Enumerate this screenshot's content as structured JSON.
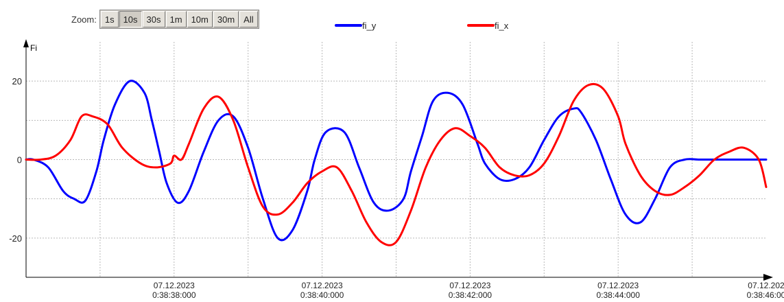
{
  "toolbar": {
    "zoom_label": "Zoom:",
    "buttons": [
      "1s",
      "10s",
      "30s",
      "1m",
      "10m",
      "30m",
      "All"
    ],
    "active": "10s"
  },
  "chart_data": {
    "type": "line",
    "ylabel": "Fi",
    "xlabel": "",
    "ylim": [
      -30,
      30
    ],
    "yticks": [
      -20,
      0,
      20
    ],
    "xlim": [
      "07.12.2023 0:38:36.00",
      "07.12.2023 0:38:46.00"
    ],
    "xticks": [
      {
        "date": "07.12.2023",
        "time": "0:38:38:000"
      },
      {
        "date": "07.12.2023",
        "time": "0:38:40:000"
      },
      {
        "date": "07.12.2023",
        "time": "0:38:42:000"
      },
      {
        "date": "07.12.2023",
        "time": "0:38:44:000"
      },
      {
        "date": "07.12.202",
        "time": "0:38:46:00"
      }
    ],
    "grid": true,
    "legend_position": "top-center",
    "series": [
      {
        "name": "fi_y",
        "color": "#0000ff",
        "x": [
          "0:38:36.00",
          "0:38:36.10",
          "0:38:36.30",
          "0:38:36.50",
          "0:38:36.65",
          "0:38:36.80",
          "0:38:36.95",
          "0:38:37.05",
          "0:38:37.20",
          "0:38:37.40",
          "0:38:37.60",
          "0:38:37.70",
          "0:38:37.80",
          "0:38:37.90",
          "0:38:38.05",
          "0:38:38.20",
          "0:38:38.40",
          "0:38:38.60",
          "0:38:38.80",
          "0:38:39.00",
          "0:38:39.20",
          "0:38:39.40",
          "0:38:39.60",
          "0:38:39.80",
          "0:38:39.90",
          "0:38:40.05",
          "0:38:40.30",
          "0:38:40.50",
          "0:38:40.70",
          "0:38:40.90",
          "0:38:41.10",
          "0:38:41.20",
          "0:38:41.35",
          "0:38:41.50",
          "0:38:41.70",
          "0:38:41.90",
          "0:38:42.10",
          "0:38:42.20",
          "0:38:42.40",
          "0:38:42.60",
          "0:38:42.80",
          "0:38:43.00",
          "0:38:43.20",
          "0:38:43.40",
          "0:38:43.50",
          "0:38:43.70",
          "0:38:43.90",
          "0:38:44.10",
          "0:38:44.30",
          "0:38:44.50",
          "0:38:44.70",
          "0:38:44.90",
          "0:38:45.10",
          "0:38:45.30",
          "0:38:45.45",
          "0:38:45.60",
          "0:38:45.80",
          "0:38:46.00"
        ],
        "values": [
          0,
          0,
          -2,
          -8,
          -10,
          -10.5,
          -3,
          5,
          14,
          20,
          17,
          10,
          2,
          -6,
          -11,
          -8,
          2,
          10,
          11,
          3,
          -10,
          -20,
          -18,
          -8,
          0,
          7,
          7,
          -2,
          -11,
          -13,
          -10,
          -3,
          6,
          15,
          17,
          14,
          4,
          -1,
          -5,
          -5,
          -2,
          5,
          11,
          13,
          12,
          5,
          -5,
          -14,
          -16,
          -10,
          -2,
          0,
          0,
          0,
          0,
          0,
          0,
          0
        ]
      },
      {
        "name": "fi_x",
        "color": "#ff0000",
        "x": [
          "0:38:36.00",
          "0:38:36.20",
          "0:38:36.40",
          "0:38:36.60",
          "0:38:36.75",
          "0:38:36.90",
          "0:38:37.10",
          "0:38:37.30",
          "0:38:37.55",
          "0:38:37.75",
          "0:38:37.95",
          "0:38:38.00",
          "0:38:38.10",
          "0:38:38.20",
          "0:38:38.40",
          "0:38:38.60",
          "0:38:38.80",
          "0:38:39.00",
          "0:38:39.20",
          "0:38:39.40",
          "0:38:39.60",
          "0:38:39.80",
          "0:38:40.00",
          "0:38:40.20",
          "0:38:40.40",
          "0:38:40.60",
          "0:38:40.80",
          "0:38:41.00",
          "0:38:41.20",
          "0:38:41.40",
          "0:38:41.60",
          "0:38:41.80",
          "0:38:42.00",
          "0:38:42.20",
          "0:38:42.40",
          "0:38:42.60",
          "0:38:42.80",
          "0:38:43.00",
          "0:38:43.20",
          "0:38:43.40",
          "0:38:43.60",
          "0:38:43.80",
          "0:38:44.00",
          "0:38:44.10",
          "0:38:44.30",
          "0:38:44.50",
          "0:38:44.70",
          "0:38:44.90",
          "0:38:45.10",
          "0:38:45.30",
          "0:38:45.50",
          "0:38:45.70",
          "0:38:45.90",
          "0:38:46.00"
        ],
        "values": [
          0,
          0,
          1,
          5,
          11,
          11,
          9,
          3,
          -1,
          -2,
          -1,
          1,
          0,
          4,
          13,
          16,
          10,
          -2,
          -12,
          -14,
          -11,
          -6,
          -3,
          -2,
          -8,
          -16,
          -21,
          -21,
          -13,
          -2,
          5,
          8,
          6,
          3,
          -2,
          -4,
          -4,
          -1,
          6,
          15,
          19,
          18,
          11,
          4,
          -4,
          -8,
          -9,
          -7,
          -4,
          0,
          2,
          3,
          0,
          -7
        ]
      }
    ]
  }
}
